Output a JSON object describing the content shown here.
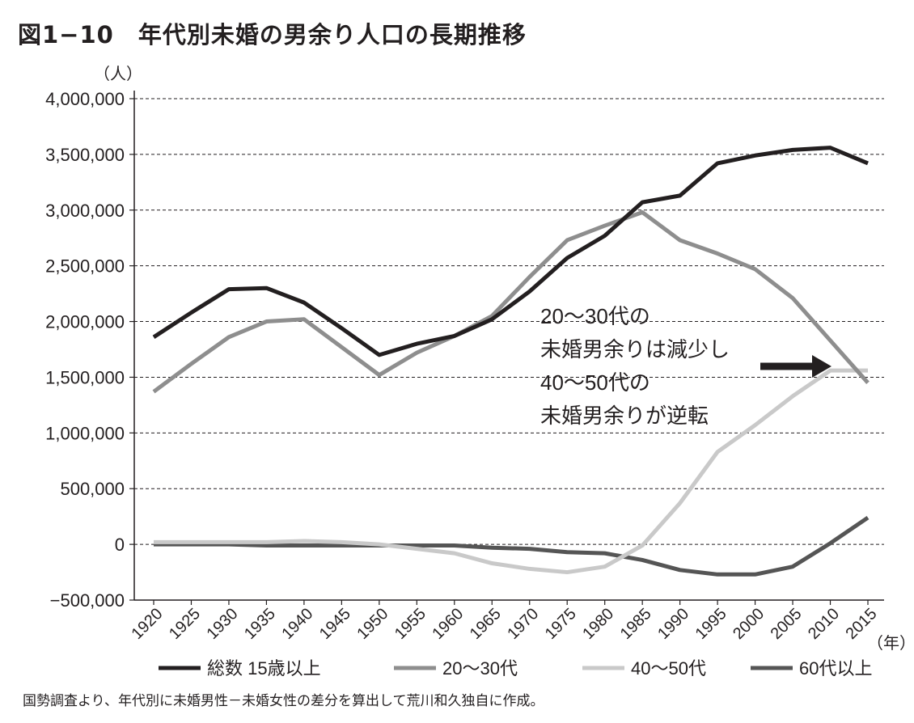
{
  "title": "図1−10　年代別未婚の男余り人口の長期推移",
  "footnote": "国勢調査より、年代別に未婚男性－未婚女性の差分を算出して荒川和久独自に作成。",
  "chart_data": {
    "type": "line",
    "title": "図1−10　年代別未婚の男余り人口の長期推移",
    "ylabel": "（人）",
    "xlabel": "（年）",
    "ylim": [
      -500000,
      4000000
    ],
    "yticks": [
      4000000,
      3500000,
      3000000,
      2500000,
      2000000,
      1500000,
      1000000,
      500000,
      0,
      -500000
    ],
    "ytick_labels": [
      "4,000,000",
      "3,500,000",
      "3,000,000",
      "2,500,000",
      "2,000,000",
      "1,500,000",
      "1,000,000",
      "500,000",
      "0",
      "−500,000"
    ],
    "x": [
      1920,
      1925,
      1930,
      1935,
      1940,
      1945,
      1950,
      1955,
      1960,
      1965,
      1970,
      1975,
      1980,
      1985,
      1990,
      1995,
      2000,
      2005,
      2010,
      2015
    ],
    "x_labels": [
      "1920",
      "1925",
      "1930",
      "1935",
      "1940",
      "1945",
      "1950",
      "1955",
      "1960",
      "1965",
      "1970",
      "1975",
      "1980",
      "1985",
      "1990",
      "1995",
      "2000",
      "2005",
      "2010",
      "2015"
    ],
    "grid": "horizontal dashed",
    "legend_position": "bottom",
    "series": [
      {
        "name": "総数 15歳以上",
        "color": "#231f20",
        "values": [
          1860000,
          2080000,
          2290000,
          2300000,
          2170000,
          1940000,
          1700000,
          1800000,
          1870000,
          2020000,
          2270000,
          2570000,
          2770000,
          3070000,
          3130000,
          3420000,
          3490000,
          3540000,
          3560000,
          3420000
        ]
      },
      {
        "name": "20～30代",
        "color": "#8e8e8e",
        "values": [
          1370000,
          1620000,
          1860000,
          2000000,
          2020000,
          1770000,
          1520000,
          1720000,
          1870000,
          2050000,
          2400000,
          2730000,
          2860000,
          2980000,
          2730000,
          2610000,
          2470000,
          2210000,
          1830000,
          1450000
        ]
      },
      {
        "name": "40～50代",
        "color": "#c9c9c9",
        "values": [
          20000,
          20000,
          20000,
          20000,
          30000,
          20000,
          0,
          -40000,
          -80000,
          -170000,
          -220000,
          -250000,
          -200000,
          -10000,
          370000,
          830000,
          1070000,
          1330000,
          1560000,
          1560000
        ]
      },
      {
        "name": "60代以上",
        "color": "#555555",
        "values": [
          0,
          0,
          0,
          -10000,
          -10000,
          -10000,
          -10000,
          -10000,
          -10000,
          -30000,
          -40000,
          -70000,
          -80000,
          -140000,
          -230000,
          -270000,
          -270000,
          -200000,
          10000,
          240000
        ]
      }
    ],
    "annotation": {
      "lines": [
        "20～30代の",
        "未婚男余りは減少し",
        "40～50代の",
        "未婚男余りが逆転"
      ],
      "arrow_target_year": 2010
    }
  }
}
